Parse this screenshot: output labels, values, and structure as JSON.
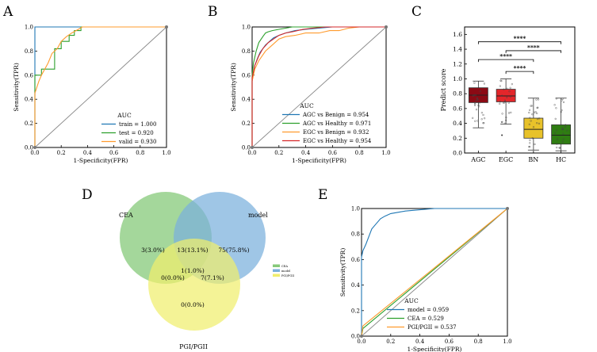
{
  "panels": {
    "A": "A",
    "B": "B",
    "C": "C",
    "D": "D",
    "E": "E"
  },
  "colors": {
    "blue": "#1f77b4",
    "green": "#2ca02c",
    "orange": "#ff9b2e",
    "red": "#d62728",
    "diag": "#888888",
    "AGC": "#8b0a14",
    "EGC": "#e3262a",
    "BN": "#e8c22a",
    "HC": "#2f7d12",
    "venn_cea": "#86c97a",
    "venn_model": "#7ab0dc",
    "venn_pgi": "#f0ee6e"
  },
  "chart_data": [
    {
      "id": "A",
      "type": "line",
      "xlabel": "1-Specificity(FPR)",
      "ylabel": "Sensitivity(TPR)",
      "xlim": [
        0,
        1
      ],
      "ylim": [
        0,
        1
      ],
      "xticks": [
        "0.0",
        "0.2",
        "0.4",
        "0.6",
        "0.8",
        "1.0"
      ],
      "yticks": [
        "0.0",
        "0.2",
        "0.4",
        "0.6",
        "0.8",
        "1.0"
      ],
      "legend_title": "AUC",
      "legend_position": "lower-right",
      "series": [
        {
          "name": "train = 1.000",
          "color": "blue",
          "x": [
            0,
            0,
            1
          ],
          "y": [
            0,
            1,
            1
          ]
        },
        {
          "name": "test = 0.920",
          "color": "green",
          "x": [
            0,
            0,
            0.05,
            0.05,
            0.15,
            0.15,
            0.2,
            0.2,
            0.26,
            0.26,
            0.3,
            0.3,
            0.35,
            0.35,
            1
          ],
          "y": [
            0,
            0.6,
            0.6,
            0.65,
            0.65,
            0.82,
            0.82,
            0.88,
            0.88,
            0.93,
            0.93,
            0.97,
            0.97,
            1,
            1
          ]
        },
        {
          "name": "valid = 0.930",
          "color": "orange",
          "x": [
            0,
            0,
            0.03,
            0.05,
            0.1,
            0.13,
            0.17,
            0.2,
            0.24,
            0.28,
            0.33,
            0.36,
            1
          ],
          "y": [
            0,
            0.45,
            0.55,
            0.6,
            0.7,
            0.78,
            0.82,
            0.88,
            0.92,
            0.95,
            0.98,
            1,
            1
          ]
        }
      ],
      "diagonal": true
    },
    {
      "id": "B",
      "type": "line",
      "xlabel": "1-Specificity(FPR)",
      "ylabel": "Sensitivity(TPR)",
      "xlim": [
        0,
        1
      ],
      "ylim": [
        0,
        1
      ],
      "xticks": [
        "0.0",
        "0.2",
        "0.4",
        "0.6",
        "0.8",
        "1.0"
      ],
      "yticks": [
        "0.0",
        "0.2",
        "0.4",
        "0.6",
        "0.8",
        "1.0"
      ],
      "legend_title": "AUC",
      "legend_position": "lower-right",
      "series": [
        {
          "name": "AGC vs Benign = 0.954",
          "color": "blue",
          "x": [
            0,
            0,
            0.01,
            0.02,
            0.04,
            0.06,
            0.08,
            0.1,
            0.13,
            0.16,
            0.2,
            0.25,
            0.32,
            0.4,
            0.5,
            0.6,
            1
          ],
          "y": [
            0,
            0.55,
            0.62,
            0.68,
            0.74,
            0.79,
            0.82,
            0.85,
            0.88,
            0.91,
            0.93,
            0.95,
            0.97,
            0.98,
            0.99,
            1,
            1
          ]
        },
        {
          "name": "AGC vs Healthy = 0.971",
          "color": "green",
          "x": [
            0,
            0,
            0.01,
            0.03,
            0.05,
            0.08,
            0.1,
            0.12,
            0.15,
            0.2,
            0.25,
            0.3,
            1
          ],
          "y": [
            0,
            0.6,
            0.7,
            0.8,
            0.87,
            0.92,
            0.95,
            0.96,
            0.97,
            0.98,
            0.99,
            1,
            1
          ]
        },
        {
          "name": "EGC vs Benign = 0.932",
          "color": "orange",
          "x": [
            0,
            0,
            0.02,
            0.05,
            0.1,
            0.15,
            0.2,
            0.25,
            0.32,
            0.4,
            0.5,
            0.58,
            0.65,
            0.72,
            0.8,
            1
          ],
          "y": [
            0,
            0.55,
            0.65,
            0.72,
            0.8,
            0.85,
            0.9,
            0.92,
            0.93,
            0.95,
            0.95,
            0.97,
            0.97,
            0.99,
            1,
            1
          ]
        },
        {
          "name": "EGC vs Healthy = 0.954",
          "color": "red",
          "x": [
            0,
            0,
            0.02,
            0.05,
            0.08,
            0.12,
            0.16,
            0.2,
            0.25,
            0.3,
            0.38,
            0.45,
            0.55,
            1
          ],
          "y": [
            0,
            0.58,
            0.68,
            0.76,
            0.82,
            0.87,
            0.9,
            0.93,
            0.95,
            0.96,
            0.98,
            0.99,
            1,
            1
          ]
        }
      ],
      "diagonal": true
    },
    {
      "id": "C",
      "type": "box",
      "ylabel": "Predict score",
      "ylim": [
        0,
        1.7
      ],
      "yticks": [
        0.0,
        0.2,
        0.4,
        0.6,
        0.8,
        1.0,
        1.2,
        1.4,
        1.6
      ],
      "ytick_labels": [
        "0.0",
        "0.2",
        "0.4",
        "0.6",
        "0.8",
        "1.0",
        "1.2",
        "1.4",
        "1.6"
      ],
      "categories": [
        "AGC",
        "EGC",
        "BN",
        "HC"
      ],
      "boxes": [
        {
          "name": "AGC",
          "whisker_low": 0.34,
          "q1": 0.68,
          "median": 0.78,
          "q3": 0.88,
          "whisker_high": 0.97
        },
        {
          "name": "EGC",
          "whisker_low": 0.39,
          "q1": 0.69,
          "median": 0.77,
          "q3": 0.86,
          "whisker_high": 1.0,
          "outliers": [
            0.24
          ]
        },
        {
          "name": "BN",
          "whisker_low": 0.04,
          "q1": 0.2,
          "median": 0.32,
          "q3": 0.47,
          "whisker_high": 0.74
        },
        {
          "name": "HC",
          "whisker_low": 0.03,
          "q1": 0.12,
          "median": 0.24,
          "q3": 0.38,
          "whisker_high": 0.74
        }
      ],
      "significance": [
        {
          "from": "AGC",
          "to": "HC",
          "y": 1.5,
          "label": "****"
        },
        {
          "from": "EGC",
          "to": "HC",
          "y": 1.38,
          "label": "****"
        },
        {
          "from": "AGC",
          "to": "BN",
          "y": 1.26,
          "label": "****"
        },
        {
          "from": "EGC",
          "to": "BN",
          "y": 1.1,
          "label": "****"
        }
      ]
    },
    {
      "id": "D",
      "type": "venn",
      "sets": [
        "CEA",
        "model",
        "PGI/PGII"
      ],
      "regions": {
        "cea_only": "3(3.0%)",
        "cea_model": "13(13.1%)",
        "model_only": "75(75.8%)",
        "all_three": "1(1.0%)",
        "cea_pgi": "0(0.0%)",
        "model_pgi": "7(7.1%)",
        "pgi_only": "0(0.0%)"
      },
      "legend": [
        "CEA",
        "model",
        "PGI/PGII"
      ]
    },
    {
      "id": "E",
      "type": "line",
      "xlabel": "1-Specificity(FPR)",
      "ylabel": "Sensitivity(TPR)",
      "xlim": [
        0,
        1
      ],
      "ylim": [
        0,
        1
      ],
      "xticks": [
        "0.0",
        "0.2",
        "0.4",
        "0.6",
        "0.8",
        "1.0"
      ],
      "yticks": [
        "0.0",
        "0.2",
        "0.4",
        "0.6",
        "0.8",
        "1.0"
      ],
      "legend_title": "AUC",
      "legend_position": "lower-right",
      "series": [
        {
          "name": "model = 0.959",
          "color": "blue",
          "x": [
            0,
            0,
            0.01,
            0.03,
            0.05,
            0.07,
            0.1,
            0.13,
            0.16,
            0.2,
            0.25,
            0.3,
            0.4,
            0.5,
            1
          ],
          "y": [
            0,
            0.62,
            0.67,
            0.72,
            0.78,
            0.84,
            0.88,
            0.92,
            0.94,
            0.96,
            0.97,
            0.98,
            0.99,
            1,
            1
          ]
        },
        {
          "name": "CEA = 0.529",
          "color": "green",
          "x": [
            0,
            0.01,
            1
          ],
          "y": [
            0,
            0.06,
            1
          ]
        },
        {
          "name": "PGI/PGII = 0.537",
          "color": "orange",
          "x": [
            0,
            0.01,
            1
          ],
          "y": [
            0,
            0.08,
            1
          ]
        }
      ],
      "diagonal": true
    }
  ]
}
